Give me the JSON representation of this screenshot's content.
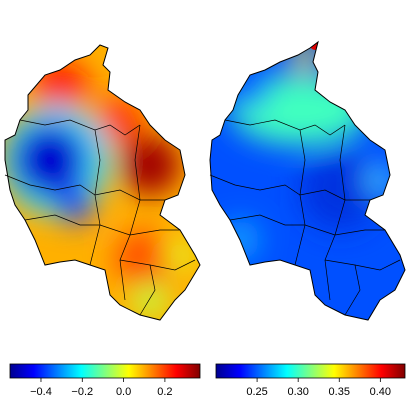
{
  "colormap": [
    "#00008f",
    "#0000ff",
    "#0080ff",
    "#00ffff",
    "#80ff80",
    "#ffff00",
    "#ff8000",
    "#ff0000",
    "#800000"
  ],
  "maps": [
    {
      "colorbar": {
        "lim": [
          -0.55,
          0.37
        ],
        "ticks": [
          {
            "value": -0.4,
            "label": "−0.4"
          },
          {
            "value": -0.2,
            "label": "−0.2"
          },
          {
            "value": 0,
            "label": "0.0"
          },
          0.2
        ]
      }
    },
    {
      "colorbar": {
        "lim": [
          0.2,
          0.43
        ],
        "ticks": [
          0.25,
          {
            "value": 0.3,
            "label": "0.30"
          },
          0.35,
          {
            "value": 0.4,
            "label": "0.40"
          }
        ]
      }
    }
  ]
}
